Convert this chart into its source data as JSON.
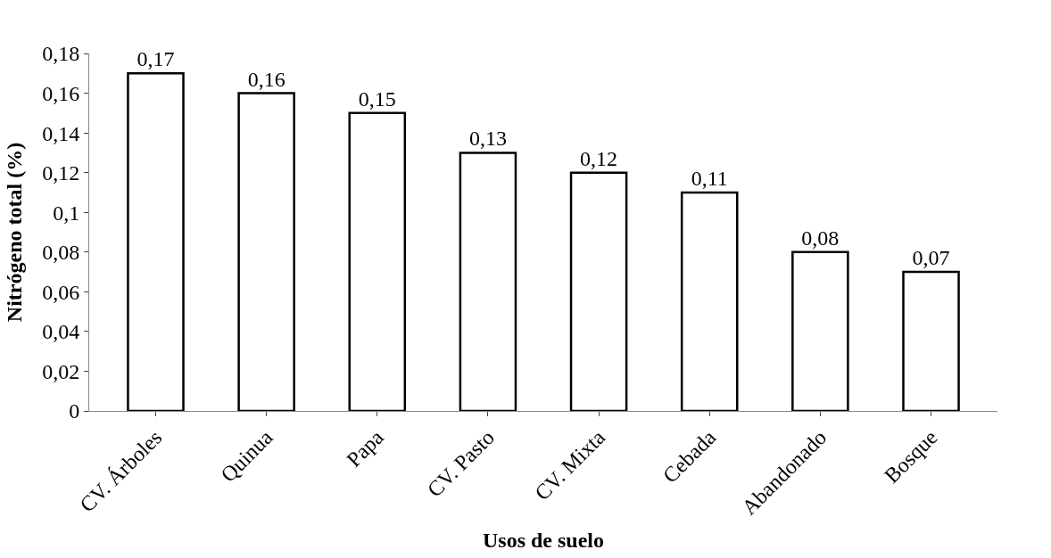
{
  "chart_data": {
    "type": "bar",
    "xlabel": "Usos de suelo",
    "ylabel": "Nitrógeno total (%)",
    "categories": [
      "CV. Árboles",
      "Quinua",
      "Papa",
      "CV. Pasto",
      "CV. Mixta",
      "Cebada",
      "Abandonado",
      "Bosque"
    ],
    "values": [
      0.17,
      0.16,
      0.15,
      0.13,
      0.12,
      0.11,
      0.08,
      0.07
    ],
    "value_labels": [
      "0,17",
      "0,16",
      "0,15",
      "0,13",
      "0,12",
      "0,11",
      "0,08",
      "0,07"
    ],
    "color": "#ffffff",
    "ylim": [
      0,
      0.18
    ],
    "yticks": [
      0,
      {
        "value": 0.02,
        "label": "0,02"
      },
      {
        "value": 0.04,
        "label": "0,04"
      },
      {
        "value": 0.06,
        "label": "0,06"
      },
      {
        "value": 0.08,
        "label": "0,08"
      },
      {
        "value": 0.1,
        "label": "0,1"
      },
      {
        "value": 0.12,
        "label": "0,12"
      },
      {
        "value": 0.14,
        "label": "0,14"
      },
      {
        "value": 0.16,
        "label": "0,16"
      },
      {
        "value": 0.18,
        "label": "0,18"
      }
    ],
    "tick_labels": [
      "x",
      "y"
    ]
  }
}
